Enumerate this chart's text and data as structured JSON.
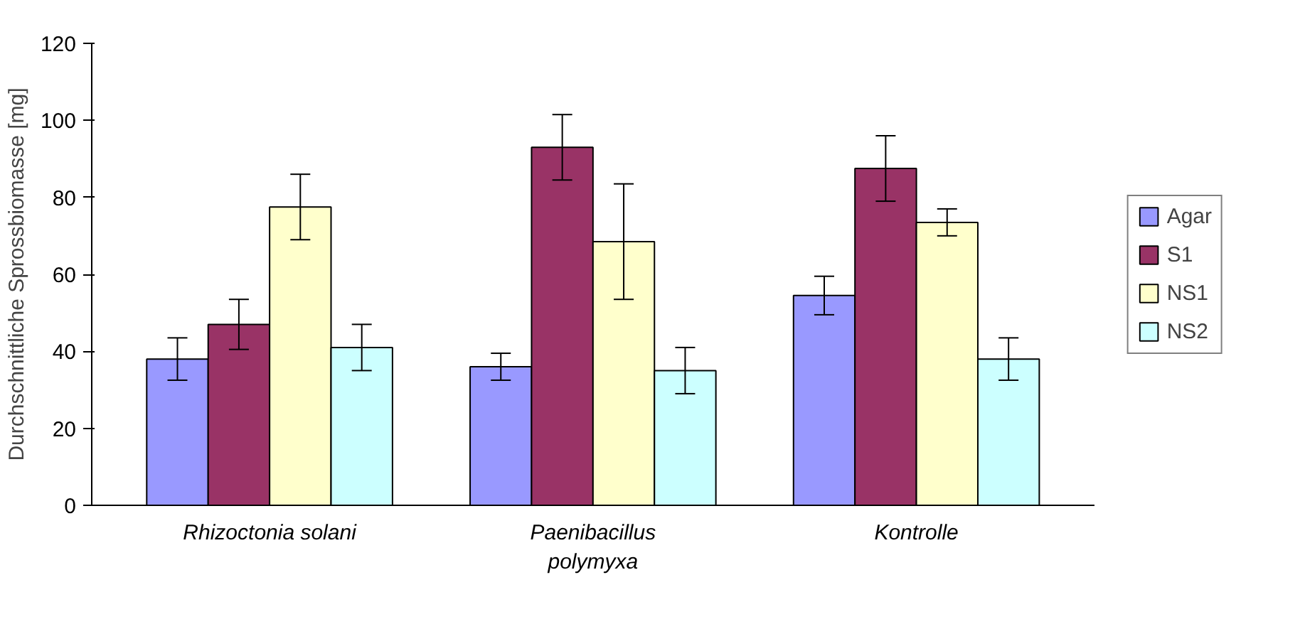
{
  "chart_data": {
    "type": "bar",
    "ylabel": "Durchschnittliche Sprossbiomasse [mg]",
    "categories": [
      "Rhizoctonia solani",
      "Paenibacillus polymyxa",
      "Kontrolle"
    ],
    "series": [
      {
        "name": "Agar",
        "color": "#9999ff",
        "values": [
          38,
          36,
          54.5
        ],
        "errors": [
          5.5,
          3.5,
          5
        ]
      },
      {
        "name": "S1",
        "color": "#993366",
        "values": [
          47,
          93,
          87.5
        ],
        "errors": [
          6.5,
          8.5,
          8.5
        ]
      },
      {
        "name": "NS1",
        "color": "#ffffcc",
        "values": [
          77.5,
          68.5,
          73.5
        ],
        "errors": [
          8.5,
          15,
          3.5
        ]
      },
      {
        "name": "NS2",
        "color": "#ccffff",
        "values": [
          41,
          35,
          38
        ],
        "errors": [
          6,
          6,
          5.5
        ]
      }
    ],
    "ylim": [
      0,
      120
    ],
    "yticks": [
      0,
      20,
      40,
      60,
      80,
      100,
      120
    ],
    "grid": false,
    "legend": "right"
  }
}
